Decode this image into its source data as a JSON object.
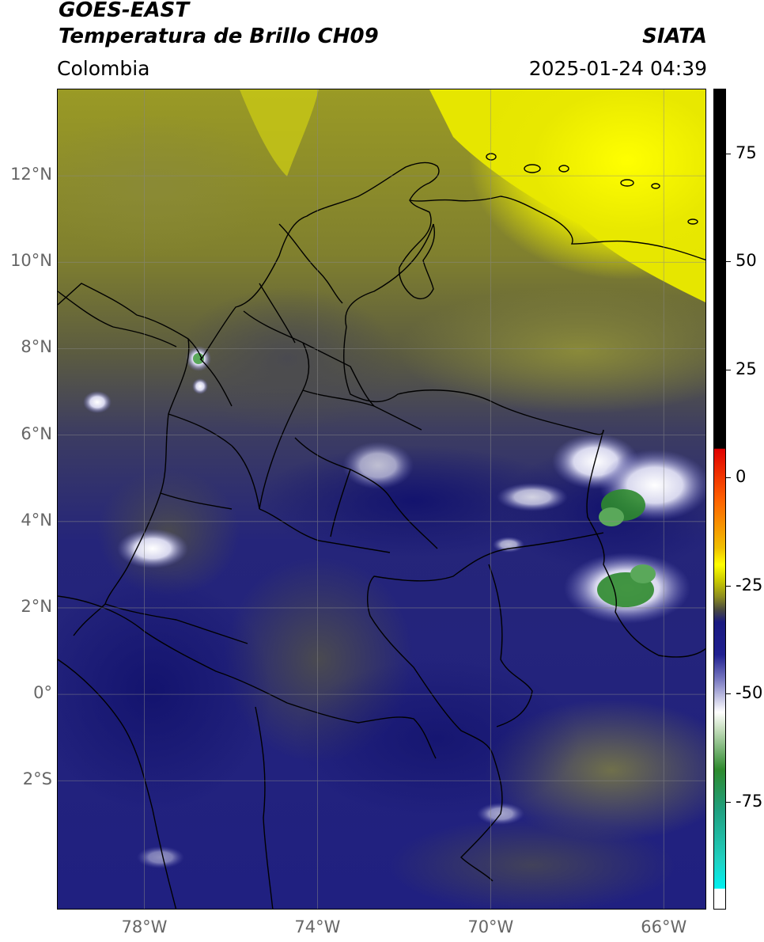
{
  "header": {
    "satellite": "GOES-EAST",
    "product": "Temperatura de Brillo CH09",
    "region": "Colombia",
    "org": "SIATA",
    "datetime": "2025-01-24 04:39"
  },
  "map": {
    "lon_range": [
      -80,
      -65
    ],
    "lat_range": [
      -5,
      14
    ],
    "lat_ticks": [
      {
        "value": 12,
        "label": "12°N"
      },
      {
        "value": 10,
        "label": "10°N"
      },
      {
        "value": 8,
        "label": "8°N"
      },
      {
        "value": 6,
        "label": "6°N"
      },
      {
        "value": 4,
        "label": "4°N"
      },
      {
        "value": 2,
        "label": "2°N"
      },
      {
        "value": 0,
        "label": "0°"
      },
      {
        "value": -2,
        "label": "2°S"
      }
    ],
    "lon_ticks": [
      {
        "value": -78,
        "label": "78°W"
      },
      {
        "value": -74,
        "label": "74°W"
      },
      {
        "value": -70,
        "label": "70°W"
      },
      {
        "value": -66,
        "label": "66°W"
      }
    ],
    "gridlines": true,
    "colors": {
      "dark_navy": "#1a1a7a",
      "gray_olive": "#4d4d44",
      "olive": "#8a8a2a",
      "yellow": "#f0f000",
      "white": "#f4f4f8",
      "green": "#2e8a2e"
    }
  },
  "colorbar": {
    "range": [
      -100,
      90
    ],
    "ticks": [
      {
        "value": 75,
        "label": "75"
      },
      {
        "value": 50,
        "label": "50"
      },
      {
        "value": 25,
        "label": "25"
      },
      {
        "value": 0,
        "label": "0"
      },
      {
        "value": -25,
        "label": "-25"
      },
      {
        "value": -50,
        "label": "-50"
      },
      {
        "value": -75,
        "label": "-75"
      }
    ]
  }
}
